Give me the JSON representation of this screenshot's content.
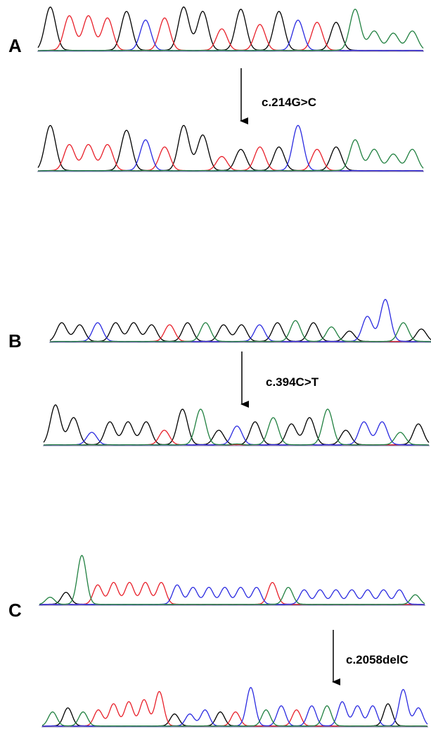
{
  "panels": [
    {
      "label": "A",
      "mutation": "c.214G>C"
    },
    {
      "label": "B",
      "mutation": "c.394C>T"
    },
    {
      "label": "C",
      "mutation": "c.2058delC"
    }
  ]
}
